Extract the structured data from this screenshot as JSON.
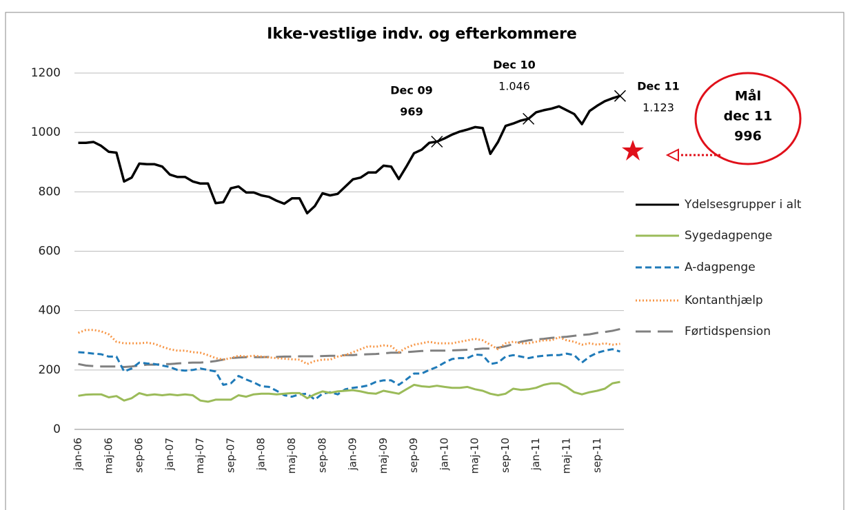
{
  "chart_data": {
    "type": "line",
    "title": "Ikke-vestlige indv. og efterkommere",
    "categories": [
      "jan-06",
      null,
      null,
      null,
      "maj-06",
      null,
      null,
      null,
      "sep-06",
      null,
      null,
      null,
      "jan-07",
      null,
      null,
      null,
      "maj-07",
      null,
      null,
      null,
      "sep-07",
      null,
      null,
      null,
      "jan-08",
      null,
      null,
      null,
      "maj-08",
      null,
      null,
      null,
      "sep-08",
      null,
      null,
      null,
      "jan-09",
      null,
      null,
      null,
      "maj-09",
      null,
      null,
      null,
      "sep-09",
      null,
      null,
      null,
      "jan-10",
      null,
      null,
      null,
      "maj-10",
      null,
      null,
      null,
      "sep-10",
      null,
      null,
      null,
      "jan-11",
      null,
      null,
      null,
      "maj-11",
      null,
      null,
      null,
      "sep-11",
      null,
      null,
      null
    ],
    "series": [
      {
        "name": "Ydelsesgrupper i alt",
        "color": "#000000",
        "style": "solid",
        "values": [
          965,
          965,
          968,
          955,
          935,
          932,
          835,
          848,
          895,
          893,
          893,
          885,
          858,
          850,
          850,
          835,
          828,
          828,
          762,
          765,
          812,
          818,
          798,
          798,
          788,
          783,
          770,
          760,
          778,
          778,
          728,
          752,
          795,
          788,
          793,
          818,
          842,
          848,
          865,
          865,
          888,
          885,
          843,
          885,
          930,
          942,
          965,
          969,
          980,
          993,
          1003,
          1010,
          1018,
          1015,
          928,
          968,
          1022,
          1030,
          1040,
          1046,
          1068,
          1075,
          1080,
          1088,
          1075,
          1062,
          1028,
          1072,
          1090,
          1105,
          1115,
          1123
        ]
      },
      {
        "name": "Sygedagpenge",
        "color": "#9bbb59",
        "style": "solid",
        "values": [
          113,
          117,
          118,
          118,
          108,
          112,
          97,
          105,
          122,
          115,
          118,
          115,
          118,
          115,
          118,
          115,
          97,
          93,
          100,
          100,
          100,
          115,
          110,
          118,
          120,
          120,
          118,
          120,
          122,
          122,
          105,
          118,
          128,
          123,
          128,
          130,
          132,
          128,
          122,
          120,
          130,
          125,
          120,
          135,
          150,
          145,
          143,
          147,
          143,
          140,
          140,
          143,
          135,
          130,
          120,
          115,
          120,
          137,
          133,
          135,
          140,
          150,
          155,
          155,
          143,
          125,
          118,
          125,
          130,
          137,
          155,
          160
        ]
      },
      {
        "name": "A-dagpenge",
        "color": "#1f7ab8",
        "style": "dashed",
        "values": [
          260,
          258,
          255,
          253,
          245,
          245,
          195,
          205,
          225,
          222,
          220,
          215,
          210,
          200,
          198,
          200,
          205,
          200,
          195,
          150,
          155,
          180,
          168,
          158,
          145,
          143,
          130,
          115,
          110,
          118,
          120,
          100,
          120,
          125,
          118,
          135,
          140,
          143,
          148,
          160,
          165,
          165,
          150,
          168,
          188,
          188,
          200,
          210,
          225,
          237,
          240,
          240,
          252,
          250,
          220,
          225,
          245,
          250,
          245,
          240,
          245,
          248,
          250,
          250,
          255,
          250,
          225,
          245,
          258,
          265,
          270,
          262
        ]
      },
      {
        "name": "Kontanthjælp",
        "color": "#f79646",
        "style": "dotted",
        "values": [
          325,
          335,
          335,
          330,
          320,
          295,
          290,
          290,
          290,
          292,
          288,
          278,
          270,
          265,
          265,
          260,
          258,
          250,
          240,
          235,
          240,
          248,
          245,
          248,
          245,
          242,
          240,
          238,
          236,
          235,
          220,
          230,
          235,
          235,
          245,
          250,
          260,
          270,
          280,
          278,
          283,
          280,
          260,
          275,
          285,
          290,
          295,
          290,
          290,
          290,
          295,
          300,
          305,
          300,
          285,
          270,
          290,
          295,
          290,
          290,
          295,
          300,
          300,
          310,
          300,
          295,
          285,
          290,
          285,
          290,
          285,
          288
        ]
      },
      {
        "name": "Førtidspension",
        "color": "#808080",
        "style": "longdash",
        "values": [
          220,
          215,
          213,
          212,
          212,
          212,
          210,
          212,
          215,
          218,
          218,
          220,
          220,
          222,
          224,
          225,
          225,
          227,
          230,
          235,
          240,
          242,
          243,
          243,
          243,
          244,
          244,
          245,
          245,
          246,
          246,
          246,
          247,
          248,
          248,
          250,
          250,
          252,
          253,
          254,
          256,
          258,
          258,
          260,
          262,
          264,
          265,
          265,
          265,
          266,
          267,
          268,
          270,
          272,
          272,
          275,
          280,
          287,
          295,
          300,
          303,
          305,
          308,
          310,
          312,
          315,
          318,
          320,
          325,
          328,
          332,
          338
        ]
      }
    ],
    "ylim": [
      0,
      1200
    ],
    "yticks": [
      0,
      200,
      400,
      600,
      800,
      1000,
      1200
    ],
    "grid": true,
    "legend": "right",
    "annotations": [
      {
        "lines": [
          "Dec 09",
          "969"
        ]
      },
      {
        "lines": [
          "Dec 10",
          "1.046"
        ]
      },
      {
        "lines": [
          "Dec 11",
          "1.123"
        ]
      }
    ],
    "target": {
      "lines": [
        "Mål",
        "dec 11",
        "996"
      ]
    }
  }
}
